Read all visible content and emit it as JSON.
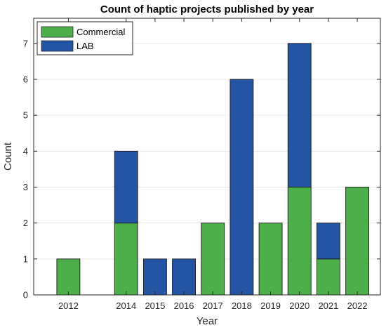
{
  "chart_data": {
    "type": "bar",
    "stacked": true,
    "title": "Count of haptic projects published by year",
    "xlabel": "Year",
    "ylabel": "Count",
    "x": [
      2012,
      2014,
      2015,
      2016,
      2017,
      2018,
      2019,
      2020,
      2021,
      2022
    ],
    "x_tick_labels": [
      "2012",
      "2014",
      "2015",
      "2016",
      "2017",
      "2018",
      "2019",
      "2020",
      "2021",
      "2022"
    ],
    "xlim": [
      2010.8,
      2022.8
    ],
    "ylim": [
      0,
      7.7
    ],
    "y_ticks": [
      0,
      1,
      2,
      3,
      4,
      5,
      6,
      7
    ],
    "grid": "horizontal",
    "legend_position": "top-left",
    "series": [
      {
        "name": "Commercial",
        "color": "#4daf4a",
        "values": [
          1,
          2,
          0,
          0,
          2,
          0,
          2,
          3,
          1,
          3
        ]
      },
      {
        "name": "LAB",
        "color": "#2455a4",
        "values": [
          0,
          2,
          1,
          1,
          0,
          6,
          0,
          4,
          1,
          0
        ]
      }
    ]
  }
}
